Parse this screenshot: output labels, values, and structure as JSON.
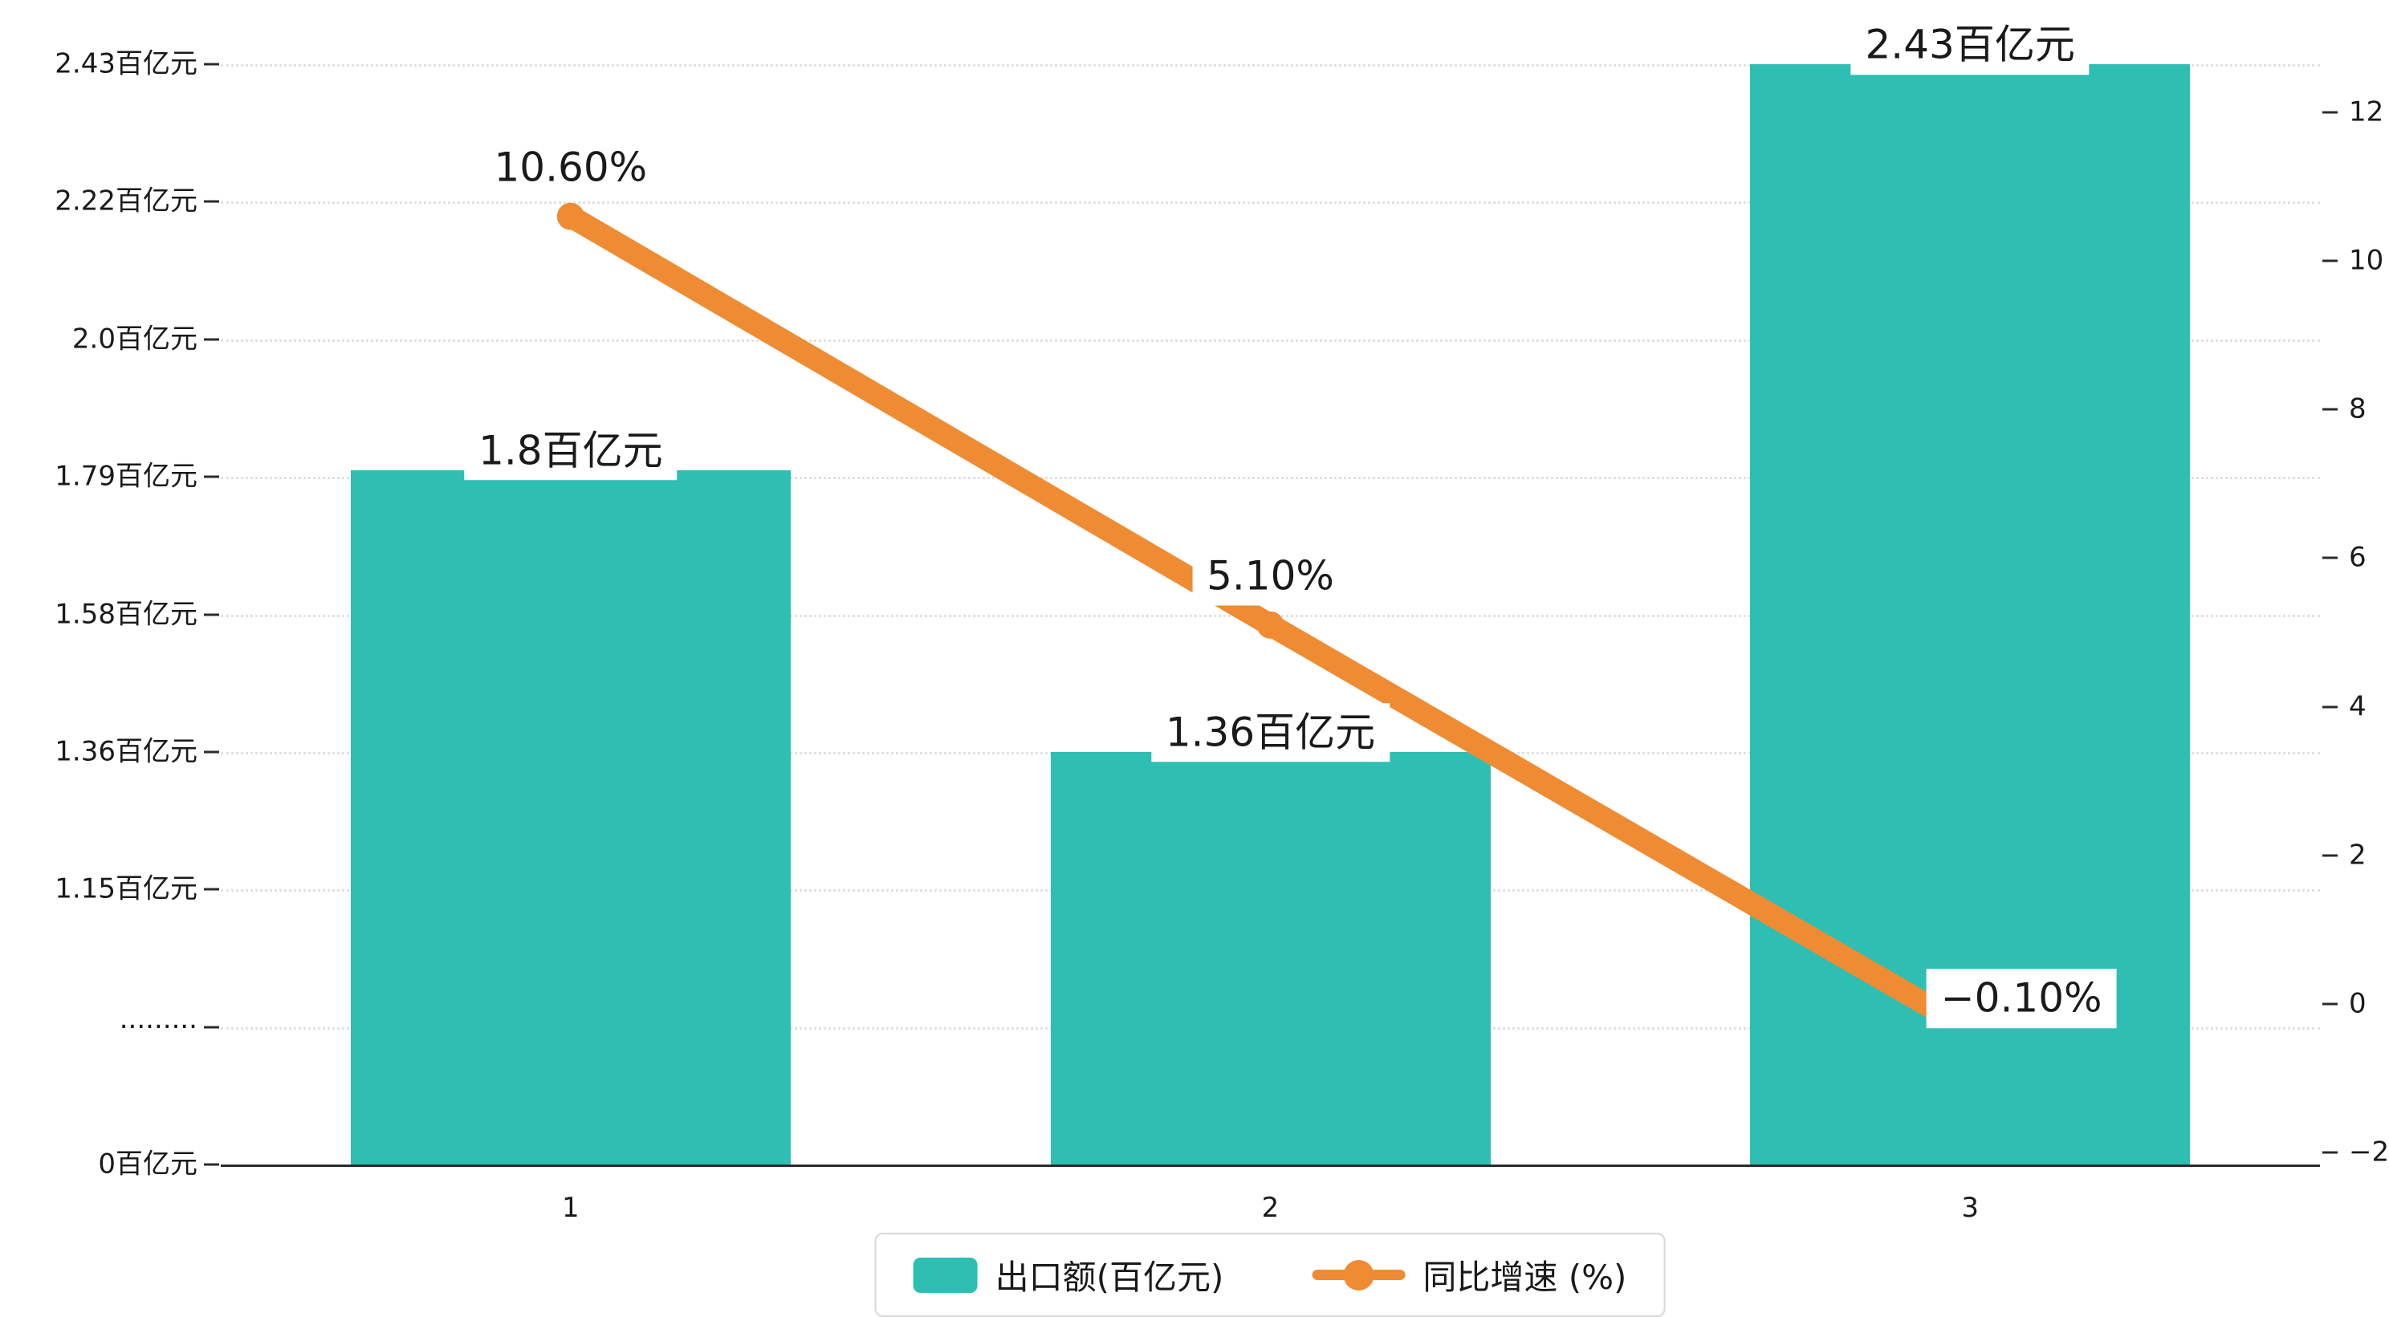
{
  "chart_data": {
    "type": "bar",
    "subtype": "bar + line combo with dual y-axes",
    "title": "",
    "categories": [
      "1",
      "2",
      "3"
    ],
    "series": [
      {
        "name": "出口额(百亿元)",
        "type": "bar",
        "axis": "left",
        "color": "#2ebfb2",
        "values": [
          1.8,
          1.36,
          2.43
        ],
        "labels": [
          "1.8百亿元",
          "1.36百亿元",
          "2.43百亿元"
        ]
      },
      {
        "name": "同比增速 (%)",
        "type": "line",
        "axis": "right",
        "color": "#ef8b33",
        "values": [
          10.6,
          5.1,
          -0.1
        ],
        "labels": [
          "10.60%",
          "5.10%",
          "−0.10%"
        ]
      }
    ],
    "left_axis": {
      "tick_labels": [
        "2.43百亿元",
        "2.22百亿元",
        "2.0百亿元",
        "1.79百亿元",
        "1.58百亿元",
        "1.36百亿元",
        "1.15百亿元",
        "·········",
        "0百亿元"
      ],
      "tick_values": [
        2.43,
        2.22,
        2.0,
        1.79,
        1.58,
        1.36,
        1.15,
        0.94,
        0
      ],
      "broken_axis": true
    },
    "right_axis": {
      "tick_labels": [
        "12",
        "10",
        "8",
        "6",
        "4",
        "2",
        "0",
        "−2"
      ],
      "max": 12,
      "min": -2
    },
    "legend": {
      "position": "bottom",
      "items": [
        "出口额(百亿元)",
        "同比增速 (%)"
      ]
    },
    "grid": "horizontal dotted gridlines"
  }
}
